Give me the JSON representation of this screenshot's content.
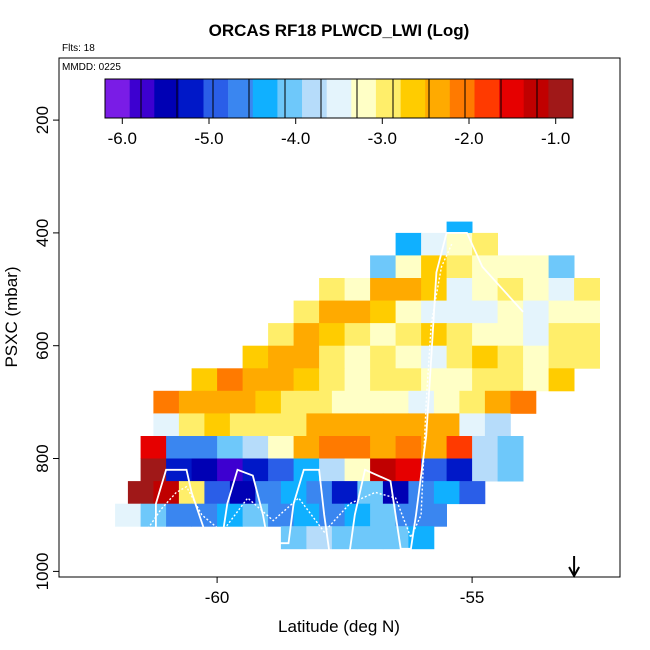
{
  "chart_data": {
    "type": "heatmap",
    "title": "ORCAS RF18 PLWCD_LWI (Log)",
    "flights_note": "Flts: 18",
    "date_note": "MMDD: 0225",
    "xlabel": "Latitude (deg N)",
    "ylabel": "PSXC (mbar)",
    "xlim": [
      -63.1,
      -52.1
    ],
    "ylim": [
      1010,
      90
    ],
    "y_reversed": true,
    "xticks": [
      -60,
      -55
    ],
    "xtick_labels": [
      "-60",
      "-55"
    ],
    "yticks": [
      200,
      400,
      600,
      800,
      1000
    ],
    "ytick_labels": [
      "200",
      "400",
      "600",
      "800",
      "1000"
    ],
    "colorbar": {
      "range": [
        -6.2,
        -0.8
      ],
      "ticks": [
        -6.0,
        -5.0,
        -4.0,
        -3.0,
        -2.0,
        -1.0
      ],
      "tick_labels": [
        "-6.0",
        "-5.0",
        "-4.0",
        "-3.0",
        "-2.0",
        "-1.0"
      ],
      "colors": [
        "#7a1ce6",
        "#3d00d0",
        "#0000b4",
        "#0018c8",
        "#2a5ee8",
        "#3a86f0",
        "#10b0ff",
        "#6ec8fa",
        "#b6dcfa",
        "#e4f4fc",
        "#ffffc6",
        "#ffee6a",
        "#ffcc00",
        "#ffaa00",
        "#ff7a00",
        "#ff3a00",
        "#e60000",
        "#c00000",
        "#a01818"
      ]
    },
    "cell_size": {
      "dlat": 0.5,
      "dp": 40
    },
    "rows": [
      {
        "p": 400,
        "cells": [
          [
            -55.25,
            -4.3
          ]
        ]
      },
      {
        "p": 420,
        "cells": [
          [
            -56.25,
            -4.3
          ],
          [
            -55.75,
            -3.5
          ],
          [
            -55.25,
            -3.3
          ],
          [
            -54.75,
            -3.0
          ]
        ]
      },
      {
        "p": 460,
        "cells": [
          [
            -56.75,
            -4.1
          ],
          [
            -56.25,
            -3.2
          ],
          [
            -55.75,
            -2.6
          ],
          [
            -55.25,
            -2.9
          ],
          [
            -54.75,
            -3.1
          ],
          [
            -54.25,
            -3.2
          ],
          [
            -53.75,
            -3.1
          ],
          [
            -53.25,
            -4.1
          ]
        ]
      },
      {
        "p": 500,
        "cells": [
          [
            -57.75,
            -3.0
          ],
          [
            -57.25,
            -3.2
          ],
          [
            -56.75,
            -2.4
          ],
          [
            -56.25,
            -2.5
          ],
          [
            -55.75,
            -2.7
          ],
          [
            -55.25,
            -3.4
          ],
          [
            -54.75,
            -3.3
          ],
          [
            -54.25,
            -3.0
          ],
          [
            -53.75,
            -3.2
          ],
          [
            -53.25,
            -3.5
          ],
          [
            -52.75,
            -3.0
          ]
        ]
      },
      {
        "p": 540,
        "cells": [
          [
            -58.25,
            -2.9
          ],
          [
            -57.75,
            -2.4
          ],
          [
            -57.25,
            -2.3
          ],
          [
            -56.75,
            -2.6
          ],
          [
            -56.25,
            -3.1
          ],
          [
            -55.75,
            -3.5
          ],
          [
            -55.25,
            -3.6
          ],
          [
            -54.75,
            -3.4
          ],
          [
            -54.25,
            -3.3
          ],
          [
            -53.75,
            -3.5
          ],
          [
            -53.25,
            -3.2
          ],
          [
            -52.75,
            -3.1
          ]
        ]
      },
      {
        "p": 580,
        "cells": [
          [
            -58.75,
            -3.0
          ],
          [
            -58.25,
            -2.5
          ],
          [
            -57.75,
            -2.6
          ],
          [
            -57.25,
            -2.9
          ],
          [
            -56.75,
            -3.1
          ],
          [
            -56.25,
            -2.8
          ],
          [
            -55.75,
            -2.7
          ],
          [
            -55.25,
            -2.8
          ],
          [
            -54.75,
            -3.3
          ],
          [
            -54.25,
            -3.2
          ],
          [
            -53.75,
            -3.4
          ],
          [
            -53.25,
            -3.0
          ],
          [
            -52.75,
            -2.9
          ]
        ]
      },
      {
        "p": 620,
        "cells": [
          [
            -59.25,
            -2.7
          ],
          [
            -58.75,
            -2.4
          ],
          [
            -58.25,
            -2.5
          ],
          [
            -57.75,
            -2.9
          ],
          [
            -57.25,
            -3.2
          ],
          [
            -56.75,
            -3.0
          ],
          [
            -56.25,
            -3.2
          ],
          [
            -55.75,
            -3.4
          ],
          [
            -55.25,
            -3.0
          ],
          [
            -54.75,
            -2.7
          ],
          [
            -54.25,
            -3.0
          ],
          [
            -53.75,
            -3.1
          ],
          [
            -53.25,
            -3.0
          ],
          [
            -52.75,
            -2.9
          ]
        ]
      },
      {
        "p": 660,
        "cells": [
          [
            -60.25,
            -2.6
          ],
          [
            -59.75,
            -2.2
          ],
          [
            -59.25,
            -2.3
          ],
          [
            -58.75,
            -2.5
          ],
          [
            -58.25,
            -2.7
          ],
          [
            -57.75,
            -2.9
          ],
          [
            -57.25,
            -3.1
          ],
          [
            -56.75,
            -2.8
          ],
          [
            -56.25,
            -3.0
          ],
          [
            -55.75,
            -3.3
          ],
          [
            -55.25,
            -3.2
          ],
          [
            -54.75,
            -3.0
          ],
          [
            -54.25,
            -2.9
          ],
          [
            -53.75,
            -3.1
          ],
          [
            -53.25,
            -2.6
          ]
        ]
      },
      {
        "p": 700,
        "cells": [
          [
            -61.0,
            -2.2
          ],
          [
            -60.5,
            -2.5
          ],
          [
            -60.0,
            -2.3
          ],
          [
            -59.5,
            -2.5
          ],
          [
            -59.0,
            -2.7
          ],
          [
            -58.5,
            -2.8
          ],
          [
            -58.0,
            -2.9
          ],
          [
            -57.5,
            -3.3
          ],
          [
            -57.0,
            -3.1
          ],
          [
            -56.5,
            -3.2
          ],
          [
            -56.0,
            -3.4
          ],
          [
            -55.5,
            -3.1
          ],
          [
            -55.0,
            -2.8
          ],
          [
            -54.5,
            -2.4
          ],
          [
            -54.0,
            -2.1
          ]
        ]
      },
      {
        "p": 740,
        "cells": [
          [
            -61.0,
            -3.4
          ],
          [
            -60.5,
            -3.0
          ],
          [
            -60.0,
            -2.7
          ],
          [
            -59.5,
            -2.8
          ],
          [
            -59.0,
            -2.9
          ],
          [
            -58.5,
            -2.8
          ],
          [
            -58.0,
            -2.5
          ],
          [
            -57.5,
            -2.4
          ],
          [
            -57.0,
            -2.3
          ],
          [
            -56.5,
            -2.5
          ],
          [
            -56.0,
            -2.3
          ],
          [
            -55.5,
            -2.4
          ],
          [
            -55.0,
            -3.6
          ],
          [
            -54.5,
            -3.8
          ]
        ]
      },
      {
        "p": 780,
        "cells": [
          [
            -61.25,
            -1.4
          ],
          [
            -60.75,
            -4.5
          ],
          [
            -60.25,
            -4.6
          ],
          [
            -59.75,
            -4.2
          ],
          [
            -59.25,
            -3.8
          ],
          [
            -58.75,
            -3.2
          ],
          [
            -58.25,
            -2.3
          ],
          [
            -57.75,
            -2.1
          ],
          [
            -57.25,
            -2.1
          ],
          [
            -56.75,
            -2.3
          ],
          [
            -56.25,
            -2.2
          ],
          [
            -55.75,
            -2.3
          ],
          [
            -55.25,
            -1.7
          ],
          [
            -54.75,
            -3.8
          ],
          [
            -54.25,
            -4.0
          ]
        ]
      },
      {
        "p": 820,
        "cells": [
          [
            -61.25,
            -1.0
          ],
          [
            -60.75,
            -5.2
          ],
          [
            -60.25,
            -5.5
          ],
          [
            -59.75,
            -5.8
          ],
          [
            -59.25,
            -5.3
          ],
          [
            -58.75,
            -5.0
          ],
          [
            -58.25,
            -4.3
          ],
          [
            -57.75,
            -3.8
          ],
          [
            -57.25,
            -3.3
          ],
          [
            -56.75,
            -1.3
          ],
          [
            -56.25,
            -1.6
          ],
          [
            -55.75,
            -5.0
          ],
          [
            -55.25,
            -5.2
          ],
          [
            -54.75,
            -3.8
          ],
          [
            -54.25,
            -4.2
          ]
        ]
      },
      {
        "p": 860,
        "cells": [
          [
            -61.5,
            -0.9
          ],
          [
            -61.0,
            -1.1
          ],
          [
            -60.5,
            -3.0
          ],
          [
            -60.0,
            -4.9
          ],
          [
            -59.5,
            -5.4
          ],
          [
            -59.0,
            -4.7
          ],
          [
            -58.5,
            -4.3
          ],
          [
            -58.0,
            -4.6
          ],
          [
            -57.5,
            -5.3
          ],
          [
            -57.0,
            -4.0
          ],
          [
            -56.5,
            -5.4
          ],
          [
            -56.0,
            -4.6
          ],
          [
            -55.5,
            -4.4
          ],
          [
            -55.0,
            -4.8
          ]
        ]
      },
      {
        "p": 900,
        "cells": [
          [
            -61.75,
            -3.6
          ],
          [
            -61.25,
            -4.1
          ],
          [
            -60.75,
            -4.5
          ],
          [
            -60.25,
            -4.6
          ],
          [
            -59.75,
            -4.4
          ],
          [
            -59.25,
            -4.2
          ],
          [
            -58.75,
            -4.5
          ],
          [
            -58.25,
            -4.3
          ],
          [
            -57.75,
            -4.6
          ],
          [
            -57.25,
            -4.4
          ],
          [
            -56.75,
            -4.2
          ],
          [
            -56.25,
            -4.5
          ],
          [
            -55.75,
            -4.6
          ]
        ]
      },
      {
        "p": 940,
        "cells": [
          [
            -58.5,
            -4.0
          ],
          [
            -58.0,
            -3.9
          ],
          [
            -57.5,
            -4.2
          ],
          [
            -57.0,
            -4.1
          ],
          [
            -56.5,
            -4.2
          ],
          [
            -56.0,
            -4.3
          ]
        ]
      }
    ],
    "flight_track": [
      [
        -61.5,
        945
      ],
      [
        -61.2,
        945
      ],
      [
        -61.2,
        880
      ],
      [
        -61.0,
        820
      ],
      [
        -60.6,
        820
      ],
      [
        -60.5,
        860
      ],
      [
        -60.2,
        940
      ],
      [
        -59.9,
        940
      ],
      [
        -59.8,
        880
      ],
      [
        -59.6,
        820
      ],
      [
        -59.3,
        830
      ],
      [
        -59.1,
        900
      ],
      [
        -59.0,
        950
      ],
      [
        -58.6,
        950
      ],
      [
        -58.5,
        880
      ],
      [
        -58.3,
        820
      ],
      [
        -58.0,
        820
      ],
      [
        -57.9,
        900
      ],
      [
        -57.8,
        965
      ],
      [
        -57.4,
        965
      ],
      [
        -57.3,
        900
      ],
      [
        -57.1,
        820
      ],
      [
        -56.6,
        840
      ],
      [
        -56.5,
        900
      ],
      [
        -56.4,
        960
      ],
      [
        -56.2,
        960
      ],
      [
        -56.1,
        900
      ],
      [
        -55.9,
        760
      ],
      [
        -55.8,
        620
      ],
      [
        -55.7,
        470
      ],
      [
        -55.5,
        400
      ],
      [
        -55.1,
        400
      ],
      [
        -55.0,
        420
      ],
      [
        -54.8,
        460
      ],
      [
        -54.4,
        500
      ],
      [
        -54.0,
        540
      ]
    ],
    "flight_track_2": [
      [
        -61.4,
        930
      ],
      [
        -61.1,
        890
      ],
      [
        -60.8,
        860
      ],
      [
        -60.6,
        850
      ],
      [
        -60.3,
        900
      ],
      [
        -59.9,
        930
      ],
      [
        -59.4,
        870
      ],
      [
        -58.9,
        910
      ],
      [
        -58.4,
        870
      ],
      [
        -57.9,
        930
      ],
      [
        -57.4,
        880
      ],
      [
        -56.9,
        860
      ],
      [
        -56.5,
        870
      ],
      [
        -56.2,
        940
      ],
      [
        -56.0,
        900
      ],
      [
        -55.9,
        700
      ],
      [
        -55.8,
        560
      ],
      [
        -55.6,
        460
      ],
      [
        -55.4,
        420
      ]
    ],
    "arrow_lat": -53.0
  }
}
